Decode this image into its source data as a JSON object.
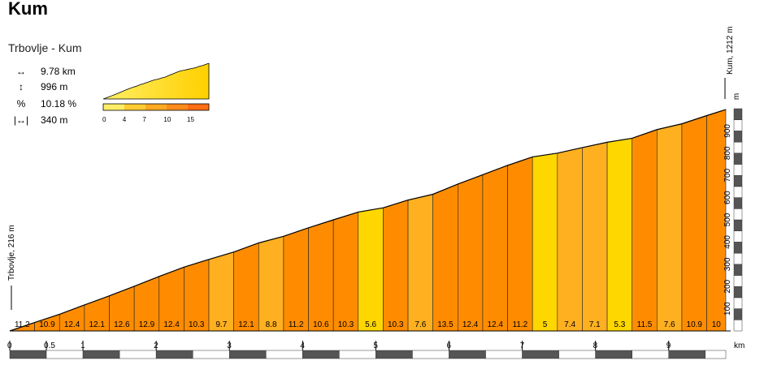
{
  "title": "Kum",
  "subtitle": "Trbovlje - Kum",
  "stats": [
    {
      "icon": "horizontal-arrow-icon",
      "symbol": "↔",
      "value": "9.78 km"
    },
    {
      "icon": "vertical-arrow-icon",
      "symbol": "↕",
      "value": "996 m"
    },
    {
      "icon": "percent-icon",
      "symbol": "%",
      "value": "10.18 %"
    },
    {
      "icon": "interval-icon",
      "symbol": "|↔|",
      "value": "340 m"
    }
  ],
  "legend": {
    "ticks": [
      "0",
      "4",
      "7",
      "10",
      "15"
    ],
    "colors": [
      "#ffee66",
      "#ffcc33",
      "#ffaa22",
      "#ff8c1a",
      "#ff6e14"
    ]
  },
  "start_label": "Trbovlje, 216 m",
  "end_label": "Kum, 1212 m",
  "y_unit": "m",
  "x_unit": "km",
  "colors": {
    "grade_low": "#ffd700",
    "grade_mid": "#ffb020",
    "grade_high": "#ff8c00",
    "outline": "#000000"
  },
  "chart_data": {
    "type": "area",
    "title": "Kum",
    "subtitle": "Trbovlje - Kum",
    "xlabel": "km",
    "ylabel": "m",
    "xlim": [
      0,
      9.78
    ],
    "ylim": [
      0,
      1000
    ],
    "x_ticks": [
      "0",
      "0.5",
      "1",
      "2",
      "3",
      "4",
      "5",
      "6",
      "7",
      "8",
      "9"
    ],
    "y_ticks": [
      "100",
      "200",
      "300",
      "400",
      "500",
      "600",
      "700",
      "800",
      "900"
    ],
    "segment_length_km": 0.34,
    "segment_grades": [
      11.2,
      10.9,
      12.4,
      12.1,
      12.6,
      12.9,
      12.4,
      10.3,
      9.7,
      12.1,
      8.8,
      11.2,
      10.6,
      10.3,
      5.6,
      10.3,
      7.6,
      13.5,
      12.4,
      12.4,
      11.2,
      5,
      7.4,
      7.1,
      5.3,
      11.5,
      7.6,
      10.9,
      10
    ],
    "profile_x": [
      0,
      0.34,
      0.68,
      1.02,
      1.36,
      1.7,
      2.04,
      2.38,
      2.72,
      3.06,
      3.4,
      3.74,
      4.08,
      4.42,
      4.76,
      5.1,
      5.44,
      5.78,
      6.12,
      6.46,
      6.8,
      7.14,
      7.48,
      7.82,
      8.16,
      8.5,
      8.84,
      9.18,
      9.52,
      9.78
    ],
    "profile_y": [
      0,
      38,
      75,
      117,
      158,
      201,
      245,
      287,
      322,
      355,
      396,
      426,
      464,
      500,
      535,
      554,
      589,
      615,
      661,
      703,
      745,
      783,
      800,
      825,
      849,
      867,
      906,
      932,
      969,
      996
    ]
  }
}
